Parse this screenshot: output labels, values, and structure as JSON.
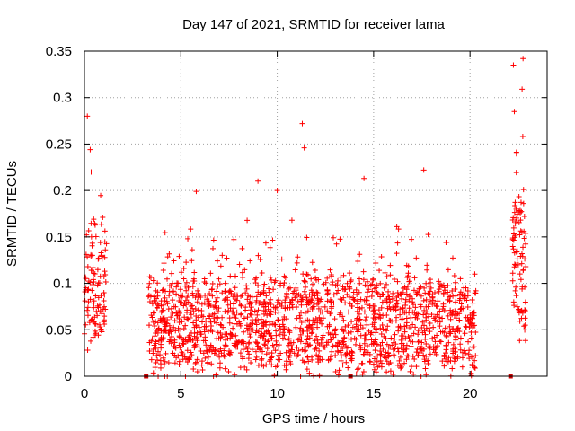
{
  "chart_data": {
    "type": "scatter",
    "title": "Day 147 of 2021, SRMTID for receiver lama",
    "xlabel": "GPS time / hours",
    "ylabel": "SRMTID / TECUs",
    "xlim": [
      0,
      24
    ],
    "ylim": [
      0,
      0.35
    ],
    "xticks": [
      0,
      5,
      10,
      15,
      20
    ],
    "yticks": [
      0,
      0.05,
      0.1,
      0.15,
      0.2,
      0.25,
      0.3,
      0.35
    ],
    "xtick_labels": [
      "0",
      "5",
      "10",
      "15",
      "20"
    ],
    "ytick_labels": [
      "0",
      "0.05",
      "0.1",
      "0.15",
      "0.2",
      "0.25",
      "0.3",
      "0.35"
    ],
    "grid": true,
    "marker": "+",
    "color": "#ff0000",
    "gap_marker_color": "#cc0000",
    "gap_times": [
      3.2,
      13.8,
      22.1
    ],
    "series": [
      {
        "name": "SRMTID",
        "segments": [
          {
            "x_start": 0.0,
            "x_end": 1.15,
            "count": 110,
            "y_base": 0.095,
            "y_spread": 0.07,
            "y_min": 0.0,
            "peaks": [
              {
                "x": 0.15,
                "y": 0.28
              },
              {
                "x": 0.3,
                "y": 0.244
              },
              {
                "x": 0.35,
                "y": 0.22
              }
            ]
          },
          {
            "x_start": 3.3,
            "x_end": 20.3,
            "count": 1700,
            "y_base": 0.055,
            "y_spread": 0.06,
            "y_min": 0.0,
            "peaks": [
              {
                "x": 11.3,
                "y": 0.272
              },
              {
                "x": 11.4,
                "y": 0.246
              },
              {
                "x": 14.5,
                "y": 0.213
              },
              {
                "x": 17.6,
                "y": 0.222
              },
              {
                "x": 9.0,
                "y": 0.21
              },
              {
                "x": 5.8,
                "y": 0.199
              },
              {
                "x": 10.0,
                "y": 0.2
              }
            ]
          },
          {
            "x_start": 22.2,
            "x_end": 22.9,
            "count": 90,
            "y_base": 0.12,
            "y_spread": 0.09,
            "y_min": 0.02,
            "peaks": [
              {
                "x": 22.25,
                "y": 0.335
              },
              {
                "x": 22.75,
                "y": 0.342
              },
              {
                "x": 22.7,
                "y": 0.309
              },
              {
                "x": 22.3,
                "y": 0.285
              }
            ]
          }
        ]
      }
    ]
  }
}
